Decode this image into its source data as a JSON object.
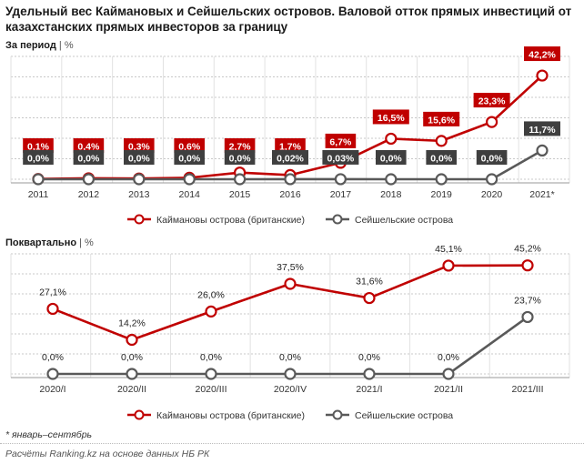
{
  "title": "Удельный вес Каймановых и Сейшельских островов. Валовой отток прямых инвестиций от казахстанских прямых инвесторов за границу",
  "footnote": "* январь–сентябрь",
  "source": "Расчёты Ranking.kz на основе данных НБ РК",
  "colors": {
    "cayman": "#c00000",
    "seychelles": "#595959",
    "grid": "#c8c8c8",
    "label_box_cayman": "#c00000",
    "label_box_seychelles": "#3f3f3f"
  },
  "chart_data": [
    {
      "type": "line",
      "title": "За период",
      "unit": "%",
      "categories": [
        "2011",
        "2012",
        "2013",
        "2014",
        "2015",
        "2016",
        "2017",
        "2018",
        "2019",
        "2020",
        "2021*"
      ],
      "ylim": [
        0,
        50
      ],
      "grid": true,
      "legend_position": "bottom",
      "series": [
        {
          "name": "Каймановы острова (британские)",
          "values": [
            0.1,
            0.4,
            0.3,
            0.6,
            2.7,
            1.7,
            6.7,
            16.5,
            15.6,
            23.3,
            42.2
          ],
          "labels": [
            "0,1%",
            "0,4%",
            "0,3%",
            "0,6%",
            "2,7%",
            "1,7%",
            "6,7%",
            "16,5%",
            "15,6%",
            "23,3%",
            "42,2%"
          ]
        },
        {
          "name": "Сейшельские острова",
          "values": [
            0.0,
            0.0,
            0.0,
            0.0,
            0.0,
            0.02,
            0.03,
            0.0,
            0.0,
            0.0,
            11.7
          ],
          "labels": [
            "0,0%",
            "0,0%",
            "0,0%",
            "0,0%",
            "0,0%",
            "0,02%",
            "0,03%",
            "0,0%",
            "0,0%",
            "0,0%",
            "11,7%"
          ]
        }
      ]
    },
    {
      "type": "line",
      "title": "Поквартально",
      "unit": "%",
      "categories": [
        "2020/I",
        "2020/II",
        "2020/III",
        "2020/IV",
        "2021/I",
        "2021/II",
        "2021/III"
      ],
      "ylim": [
        0,
        50
      ],
      "grid": true,
      "legend_position": "bottom",
      "series": [
        {
          "name": "Каймановы острова (британские)",
          "values": [
            27.1,
            14.2,
            26.0,
            37.5,
            31.6,
            45.1,
            45.2
          ],
          "labels": [
            "27,1%",
            "14,2%",
            "26,0%",
            "37,5%",
            "31,6%",
            "45,1%",
            "45,2%"
          ]
        },
        {
          "name": "Сейшельские острова",
          "values": [
            0.0,
            0.0,
            0.0,
            0.0,
            0.0,
            0.0,
            23.7
          ],
          "labels": [
            "0,0%",
            "0,0%",
            "0,0%",
            "0,0%",
            "0,0%",
            "0,0%",
            "23,7%"
          ]
        }
      ]
    }
  ]
}
